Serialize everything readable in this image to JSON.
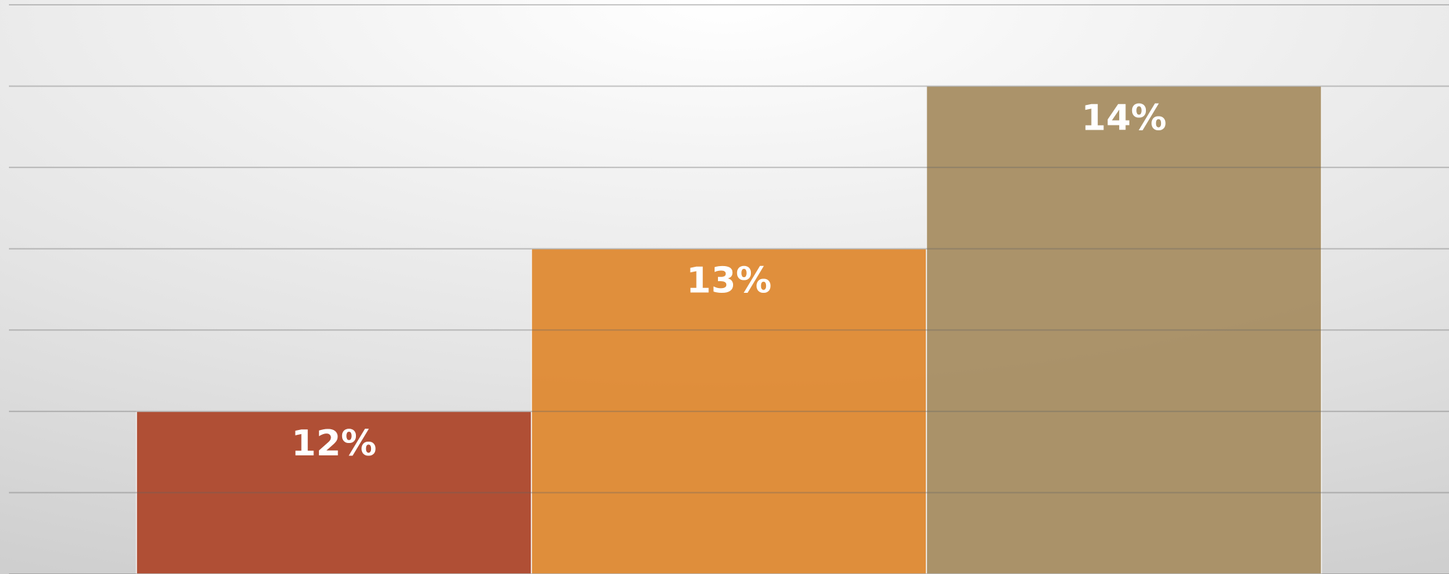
{
  "chart_data": {
    "type": "bar",
    "categories": [
      null,
      null,
      null
    ],
    "values": [
      12,
      13,
      14
    ],
    "value_labels": [
      "12%",
      "13%",
      "14%"
    ],
    "colors": [
      "#ae4a2f",
      "#df8b36",
      "#a89065"
    ],
    "ylim": [
      11,
      14.5
    ],
    "yticks": [
      11,
      11.5,
      12,
      12.5,
      13,
      13.5,
      14,
      14.5
    ],
    "grid": true
  }
}
